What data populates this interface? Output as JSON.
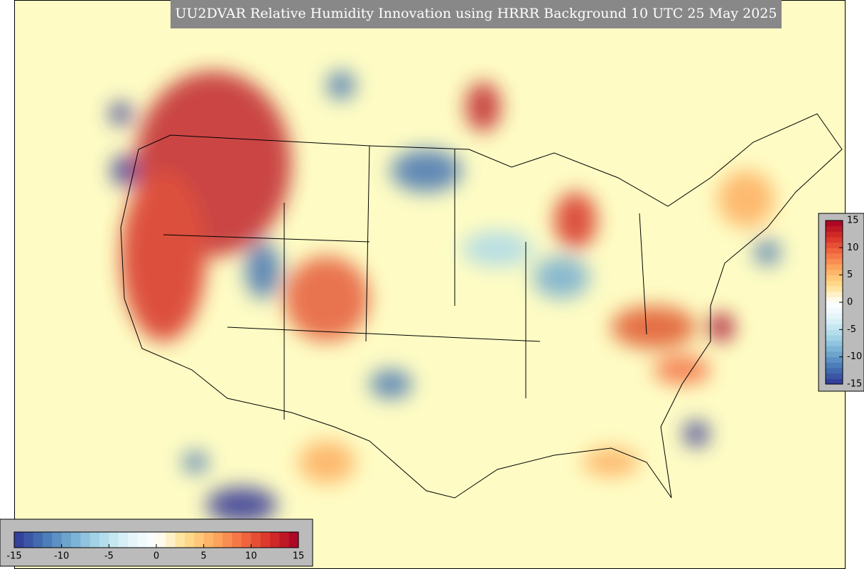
{
  "title": "UU2DVAR Relative Humidity Innovation using HRRR Background 10 UTC 25 May 2025",
  "colormap": [
    "#313695",
    "#4575b4",
    "#74add1",
    "#abd9e9",
    "#e0f3f8",
    "#ffffff",
    "#fee090",
    "#fdae61",
    "#f46d43",
    "#d73027",
    "#a50026"
  ],
  "colorbar_right": {
    "range": [
      -15,
      15
    ],
    "ticks": [
      15,
      10,
      5,
      0,
      -5,
      -10,
      -15
    ]
  },
  "colorbar_bottom": {
    "range": [
      -15,
      15
    ],
    "ticks": [
      -15,
      -10,
      -5,
      0,
      5,
      10,
      15
    ]
  }
}
